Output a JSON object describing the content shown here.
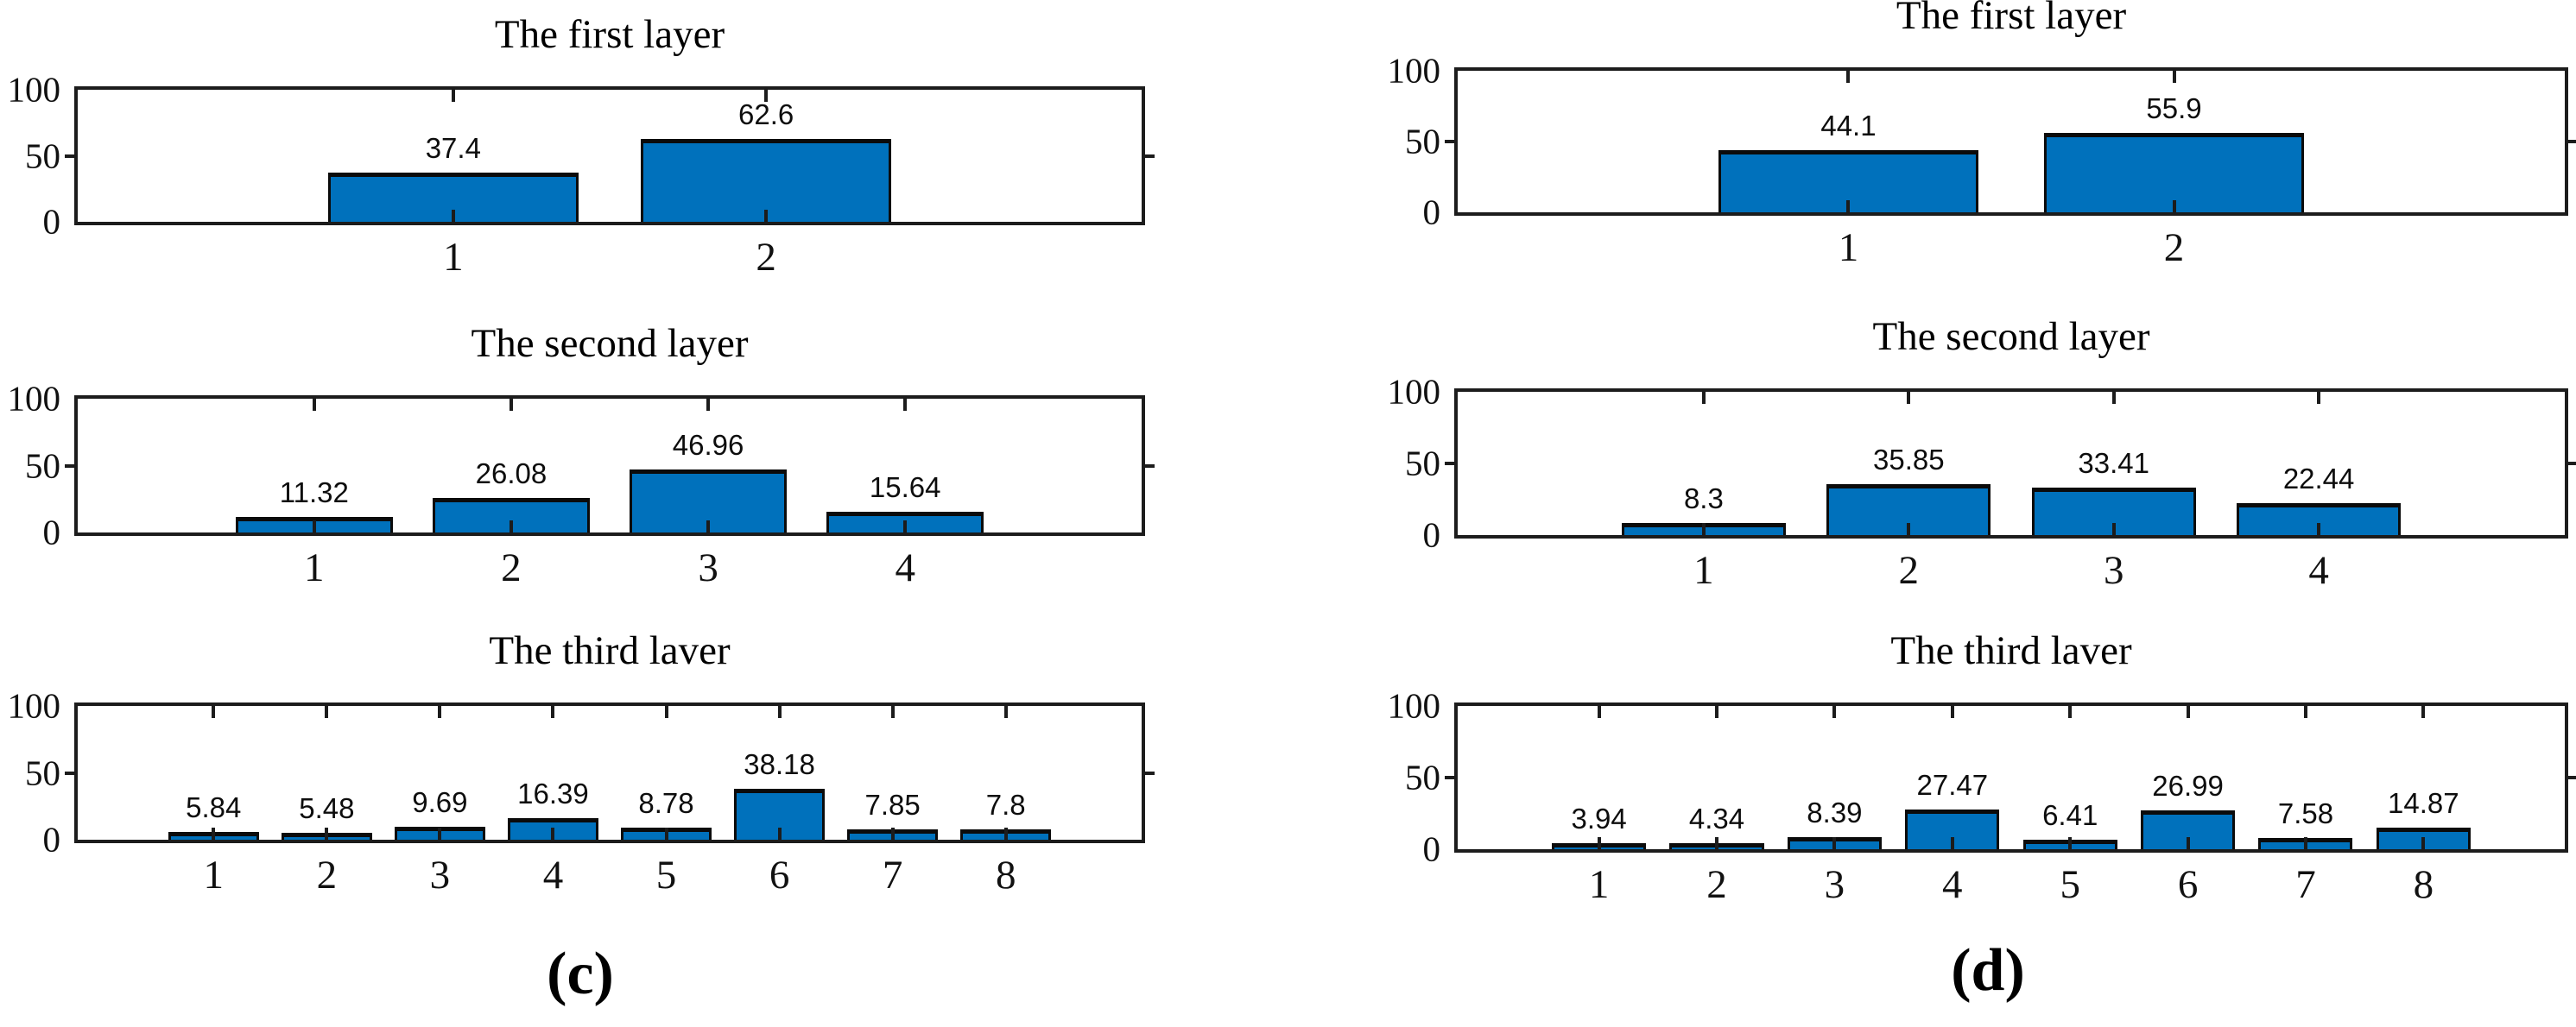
{
  "figure": {
    "captions": [
      {
        "id": "c",
        "label": "(c)"
      },
      {
        "id": "d",
        "label": "(d)"
      }
    ]
  },
  "chart_data": [
    {
      "type": "bar",
      "panel": "c",
      "row": 0,
      "title": "The first layer",
      "categories": [
        "1",
        "2"
      ],
      "values": [
        37.4,
        62.6
      ],
      "value_labels": [
        "37.4",
        "62.6"
      ],
      "ylim": [
        0,
        100
      ],
      "yticks": [
        "0",
        "50",
        "100"
      ],
      "bar_color": "#0071BC",
      "edge_color": "#0b0b0b",
      "grid": false,
      "legend": null
    },
    {
      "type": "bar",
      "panel": "c",
      "row": 1,
      "title": "The second layer",
      "categories": [
        "1",
        "2",
        "3",
        "4"
      ],
      "values": [
        11.32,
        26.08,
        46.96,
        15.64
      ],
      "value_labels": [
        "11.32",
        "26.08",
        "46.96",
        "15.64"
      ],
      "ylim": [
        0,
        100
      ],
      "yticks": [
        "0",
        "50",
        "100"
      ],
      "bar_color": "#0071BC",
      "edge_color": "#0b0b0b",
      "grid": false,
      "legend": null
    },
    {
      "type": "bar",
      "panel": "c",
      "row": 2,
      "title": "The third laver",
      "categories": [
        "1",
        "2",
        "3",
        "4",
        "5",
        "6",
        "7",
        "8"
      ],
      "values": [
        5.84,
        5.48,
        9.69,
        16.39,
        8.78,
        38.18,
        7.85,
        7.8
      ],
      "value_labels": [
        "5.84",
        "5.48",
        "9.69",
        "16.39",
        "8.78",
        "38.18",
        "7.85",
        "7.8"
      ],
      "ylim": [
        0,
        100
      ],
      "yticks": [
        "0",
        "50",
        "100"
      ],
      "bar_color": "#0071BC",
      "edge_color": "#0b0b0b",
      "grid": false,
      "legend": null
    },
    {
      "type": "bar",
      "panel": "d",
      "row": 0,
      "title": "The first layer",
      "categories": [
        "1",
        "2"
      ],
      "values": [
        44.1,
        55.9
      ],
      "value_labels": [
        "44.1",
        "55.9"
      ],
      "ylim": [
        0,
        100
      ],
      "yticks": [
        "0",
        "50",
        "100"
      ],
      "bar_color": "#0071BC",
      "edge_color": "#0b0b0b",
      "grid": false,
      "legend": null
    },
    {
      "type": "bar",
      "panel": "d",
      "row": 1,
      "title": "The second layer",
      "categories": [
        "1",
        "2",
        "3",
        "4"
      ],
      "values": [
        8.3,
        35.85,
        33.41,
        22.44
      ],
      "value_labels": [
        "8.3",
        "35.85",
        "33.41",
        "22.44"
      ],
      "ylim": [
        0,
        100
      ],
      "yticks": [
        "0",
        "50",
        "100"
      ],
      "bar_color": "#0071BC",
      "edge_color": "#0b0b0b",
      "grid": false,
      "legend": null
    },
    {
      "type": "bar",
      "panel": "d",
      "row": 2,
      "title": "The third laver",
      "categories": [
        "1",
        "2",
        "3",
        "4",
        "5",
        "6",
        "7",
        "8"
      ],
      "values": [
        3.94,
        4.34,
        8.39,
        27.47,
        6.41,
        26.99,
        7.58,
        14.87
      ],
      "value_labels": [
        "3.94",
        "4.34",
        "8.39",
        "27.47",
        "6.41",
        "26.99",
        "7.58",
        "14.87"
      ],
      "ylim": [
        0,
        100
      ],
      "yticks": [
        "0",
        "50",
        "100"
      ],
      "bar_color": "#0071BC",
      "edge_color": "#0b0b0b",
      "grid": false,
      "legend": null
    }
  ]
}
